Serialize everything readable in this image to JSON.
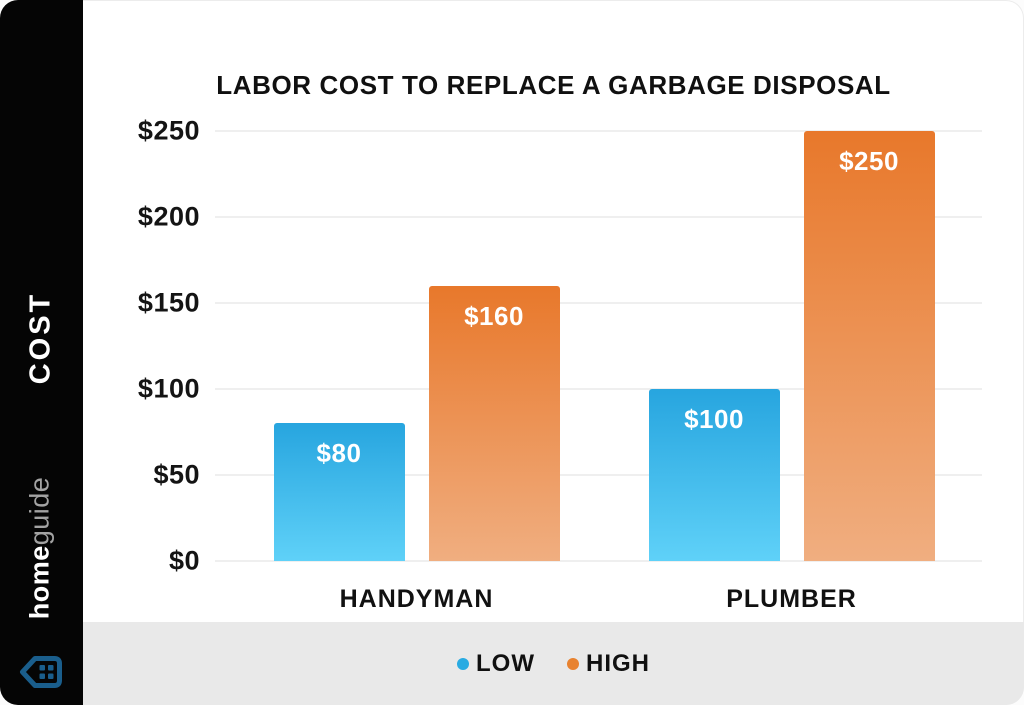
{
  "brand": {
    "cost_label": "COST",
    "logo_home": "home",
    "logo_guide": "guide"
  },
  "chart_data": {
    "type": "bar",
    "title": "LABOR COST TO REPLACE A GARBAGE DISPOSAL",
    "categories": [
      "HANDYMAN",
      "PLUMBER"
    ],
    "series": [
      {
        "name": "LOW",
        "values": [
          80,
          100
        ],
        "labels": [
          "$80",
          "$100"
        ],
        "color_top": "#27A5DF",
        "color_bottom": "#5FD1F8",
        "legend_dot_color": "#29ABE2"
      },
      {
        "name": "HIGH",
        "values": [
          160,
          250
        ],
        "labels": [
          "$160",
          "$250"
        ],
        "color_top": "#E8782B",
        "color_bottom": "#F0AE80",
        "legend_dot_color": "#E8822F"
      }
    ],
    "ylabel": "COST",
    "ylim": [
      0,
      250
    ],
    "y_ticks": [
      {
        "label": "$250",
        "value": 250
      },
      {
        "label": "$200",
        "value": 200
      },
      {
        "label": "$150",
        "value": 150
      },
      {
        "label": "$100",
        "value": 100
      },
      {
        "label": "$50",
        "value": 50
      },
      {
        "label": "$0",
        "value": 0
      }
    ],
    "grid": true,
    "legend_position": "bottom"
  },
  "colors": {
    "sidebar_bg": "#050505",
    "legend_band_bg": "#e9e9e9",
    "house_icon_blue": "#1A5E8C",
    "grid_line": "#efefef",
    "text": "#101010"
  }
}
